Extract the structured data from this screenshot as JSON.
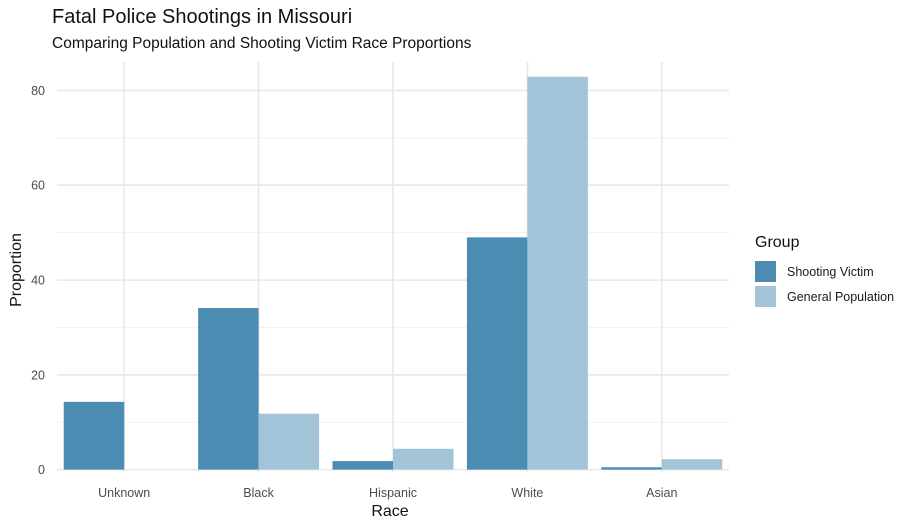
{
  "title": "Fatal Police Shootings in Missouri",
  "subtitle": "Comparing Population and Shooting Victim Race Proportions",
  "legend": {
    "title": "Group"
  },
  "chart_data": {
    "type": "bar",
    "xlabel": "Race",
    "ylabel": "Proportion",
    "categories": [
      "Unknown",
      "Black",
      "Hispanic",
      "White",
      "Asian"
    ],
    "series": [
      {
        "name": "Shooting Victim",
        "color": "#4a8cb2",
        "values": [
          14.3,
          34.1,
          1.8,
          49.0,
          0.5
        ]
      },
      {
        "name": "General Population",
        "color": "#a3c4d8",
        "values": [
          0,
          11.8,
          4.4,
          82.9,
          2.2
        ]
      }
    ],
    "yticks": [
      0,
      20,
      40,
      60,
      80
    ],
    "ylim": [
      -0.5,
      86
    ],
    "grid": true,
    "legend_position": "right"
  }
}
